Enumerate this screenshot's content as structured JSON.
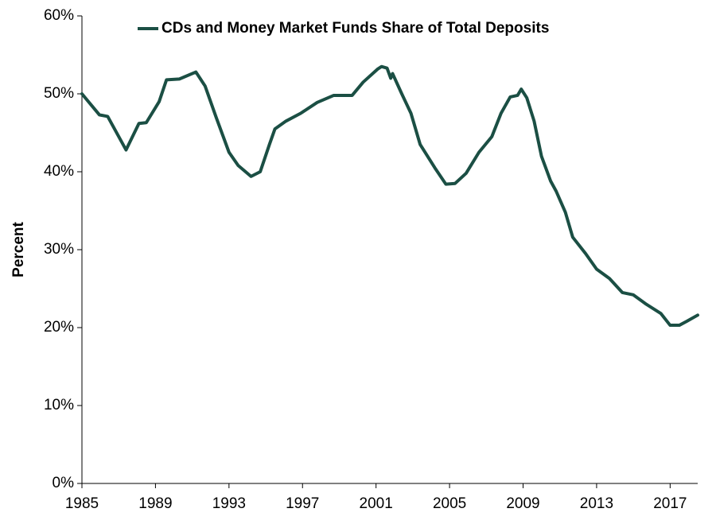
{
  "chart_data": {
    "type": "line",
    "y_label": "Percent",
    "xlim": [
      1985,
      2018.5
    ],
    "xticks": [
      1985,
      1989,
      1993,
      1997,
      2001,
      2005,
      2009,
      2013,
      2017
    ],
    "ylim": [
      0,
      60
    ],
    "yticks": [
      {
        "value": 0,
        "label": "0%"
      },
      {
        "value": 10,
        "label": "10%"
      },
      {
        "value": 20,
        "label": "20%"
      },
      {
        "value": 30,
        "label": "30%"
      },
      {
        "value": 40,
        "label": "40%"
      },
      {
        "value": 50,
        "label": "50%"
      },
      {
        "value": 60,
        "label": "60%"
      }
    ],
    "grid": false,
    "legend": "top",
    "x": [
      1985.0,
      1985.95,
      1986.4,
      1987.4,
      1988.1,
      1988.5,
      1989.2,
      1989.6,
      1990.3,
      1991.2,
      1991.7,
      1992.3,
      1993.0,
      1993.5,
      1994.2,
      1994.7,
      1995.2,
      1995.5,
      1996.1,
      1996.9,
      1997.8,
      1998.7,
      1999.7,
      2000.3,
      2001.1,
      2001.3,
      2001.6,
      2001.8,
      2001.9,
      2002.4,
      2002.9,
      2003.4,
      2004.2,
      2004.8,
      2005.3,
      2005.9,
      2006.6,
      2007.3,
      2007.8,
      2008.3,
      2008.7,
      2008.9,
      2009.2,
      2009.6,
      2010.0,
      2010.5,
      2010.8,
      2011.3,
      2011.7,
      2012.4,
      2013.0,
      2013.7,
      2014.4,
      2015.0,
      2015.7,
      2016.5,
      2017.0,
      2017.5,
      2017.9,
      2018.5
    ],
    "series": [
      {
        "name": "CDs and Money Market Funds Share of Total Deposits",
        "color": "#1b4f44",
        "values": [
          50.0,
          47.3,
          47.1,
          42.8,
          46.2,
          46.3,
          49.0,
          51.8,
          51.9,
          52.8,
          51.0,
          47.0,
          42.5,
          40.8,
          39.4,
          40.0,
          43.5,
          45.5,
          46.5,
          47.5,
          48.9,
          49.8,
          49.8,
          51.5,
          53.2,
          53.5,
          53.3,
          52.0,
          52.6,
          50.0,
          47.5,
          43.5,
          40.5,
          38.4,
          38.5,
          39.8,
          42.5,
          44.5,
          47.5,
          49.6,
          49.8,
          50.6,
          49.5,
          46.5,
          42.0,
          38.8,
          37.5,
          34.8,
          31.6,
          29.5,
          27.5,
          26.3,
          24.5,
          24.2,
          23.0,
          21.8,
          20.3,
          20.3,
          20.8,
          21.6
        ]
      }
    ]
  }
}
